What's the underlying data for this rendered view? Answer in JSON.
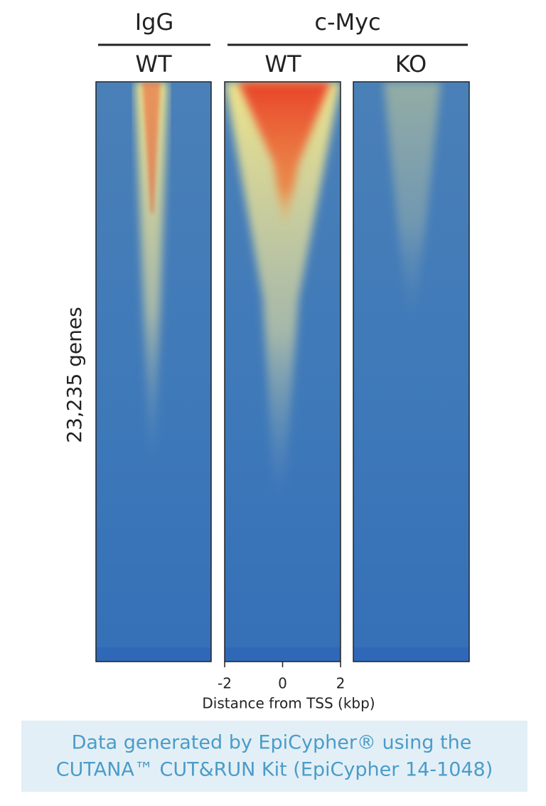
{
  "chart_data": {
    "type": "heatmap",
    "groups": [
      {
        "label": "IgG"
      },
      {
        "label": "c-Myc"
      }
    ],
    "panels": [
      "WT",
      "WT",
      "KO"
    ],
    "ylabel": "23,235 genes",
    "xlabel": "Distance from TSS (kbp)",
    "xlim": [
      -2,
      2
    ],
    "xticks": [
      -2,
      0,
      2
    ]
  },
  "footer": {
    "lines": [
      "Data generated by EpiCypher® using the",
      "CUTANA™ CUT&RUN Kit (EpiCypher 14-1048)"
    ]
  }
}
